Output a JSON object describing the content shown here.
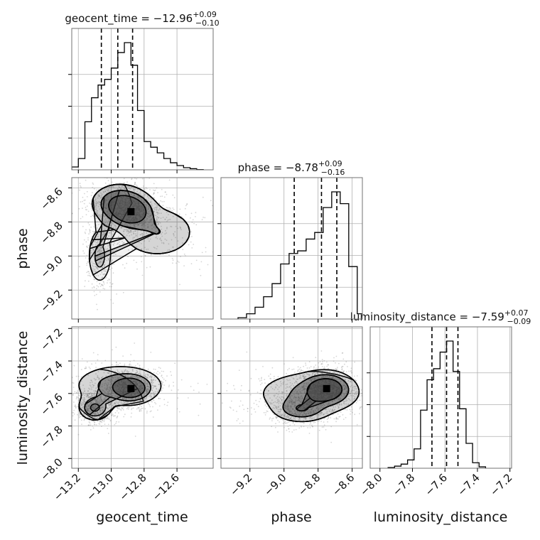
{
  "chart_data": {
    "type": "corner",
    "parameters": [
      "geocent_time",
      "phase",
      "luminosity_distance"
    ],
    "axis_labels": {
      "geocent_time": "geocent_time",
      "phase": "phase",
      "luminosity_distance": "luminosity_distance"
    },
    "ranges": {
      "geocent_time": [
        -13.24,
        -12.38
      ],
      "phase": [
        -9.37,
        -8.54
      ],
      "luminosity_distance": [
        -8.06,
        -7.19
      ]
    },
    "ticks": {
      "geocent_time": [
        "−13.2",
        "−13.0",
        "−12.8",
        "−12.6"
      ],
      "phase": [
        "−9.2",
        "−9.0",
        "−8.8",
        "−8.6"
      ],
      "luminosity_distance": [
        "−8.0",
        "−7.8",
        "−7.6",
        "−7.4",
        "−7.2"
      ]
    },
    "tick_values": {
      "geocent_time": [
        -13.2,
        -13.0,
        -12.8,
        -12.6
      ],
      "phase": [
        -9.2,
        -9.0,
        -8.8,
        -8.6
      ],
      "luminosity_distance": [
        -8.0,
        -7.8,
        -7.6,
        -7.4,
        -7.2
      ]
    },
    "titles": [
      {
        "name": "geocent_time",
        "median": "−12.96",
        "plus": "+0.09",
        "minus": "−0.10"
      },
      {
        "name": "phase",
        "median": "−8.78",
        "plus": "+0.09",
        "minus": "−0.16"
      },
      {
        "name": "luminosity_distance",
        "median": "−7.59",
        "plus": "+0.07",
        "minus": "−0.09"
      }
    ],
    "quantiles": {
      "geocent_time": [
        -13.06,
        -12.96,
        -12.87
      ],
      "phase": [
        -8.94,
        -8.78,
        -8.69
      ],
      "luminosity_distance": [
        -7.68,
        -7.59,
        -7.52
      ]
    },
    "histograms": {
      "geocent_time": {
        "edges": [
          -13.24,
          -13.2,
          -13.16,
          -13.12,
          -13.08,
          -13.04,
          -13.0,
          -12.96,
          -12.92,
          -12.88,
          -12.84,
          -12.8,
          -12.76,
          -12.72,
          -12.68,
          -12.64,
          -12.6,
          -12.56,
          -12.52,
          -12.48,
          -12.44
        ],
        "counts": [
          20,
          80,
          340,
          510,
          600,
          640,
          720,
          830,
          900,
          740,
          420,
          200,
          160,
          120,
          80,
          50,
          30,
          15,
          8,
          2
        ]
      },
      "phase": {
        "edges": [
          -9.27,
          -9.22,
          -9.17,
          -9.12,
          -9.07,
          -9.02,
          -8.97,
          -8.92,
          -8.87,
          -8.82,
          -8.77,
          -8.72,
          -8.67,
          -8.62,
          -8.57,
          -8.52
        ],
        "counts": [
          10,
          40,
          90,
          170,
          270,
          420,
          500,
          520,
          610,
          660,
          850,
          970,
          880,
          400,
          40
        ]
      },
      "luminosity_distance": {
        "edges": [
          -7.95,
          -7.91,
          -7.87,
          -7.83,
          -7.79,
          -7.75,
          -7.71,
          -7.67,
          -7.63,
          -7.59,
          -7.55,
          -7.51,
          -7.47,
          -7.43,
          -7.39,
          -7.35
        ],
        "counts": [
          5,
          15,
          30,
          60,
          140,
          420,
          640,
          720,
          840,
          920,
          700,
          430,
          180,
          40,
          10
        ]
      }
    },
    "density_peaks": {
      "phase_vs_geocent_time": [
        {
          "x": -12.88,
          "y": -8.74,
          "sx": 0.07,
          "sy": 0.05,
          "w": 1.0
        },
        {
          "x": -12.95,
          "y": -8.69,
          "sx": 0.09,
          "sy": 0.06,
          "w": 0.7
        },
        {
          "x": -13.07,
          "y": -9.0,
          "sx": 0.04,
          "sy": 0.09,
          "w": 0.45
        },
        {
          "x": -12.72,
          "y": -8.86,
          "sx": 0.14,
          "sy": 0.09,
          "w": 0.35
        }
      ],
      "luminosity_distance_vs_geocent_time": [
        {
          "x": -12.88,
          "y": -7.57,
          "sx": 0.06,
          "sy": 0.04,
          "w": 1.0
        },
        {
          "x": -13.1,
          "y": -7.69,
          "sx": 0.05,
          "sy": 0.04,
          "w": 0.7
        },
        {
          "x": -12.95,
          "y": -7.55,
          "sx": 0.15,
          "sy": 0.07,
          "w": 0.5
        }
      ],
      "luminosity_distance_vs_phase": [
        {
          "x": -8.75,
          "y": -7.57,
          "sx": 0.07,
          "sy": 0.05,
          "w": 1.0
        },
        {
          "x": -8.9,
          "y": -7.7,
          "sx": 0.08,
          "sy": 0.04,
          "w": 0.5
        },
        {
          "x": -8.85,
          "y": -7.6,
          "sx": 0.18,
          "sy": 0.08,
          "w": 0.4
        }
      ]
    }
  }
}
